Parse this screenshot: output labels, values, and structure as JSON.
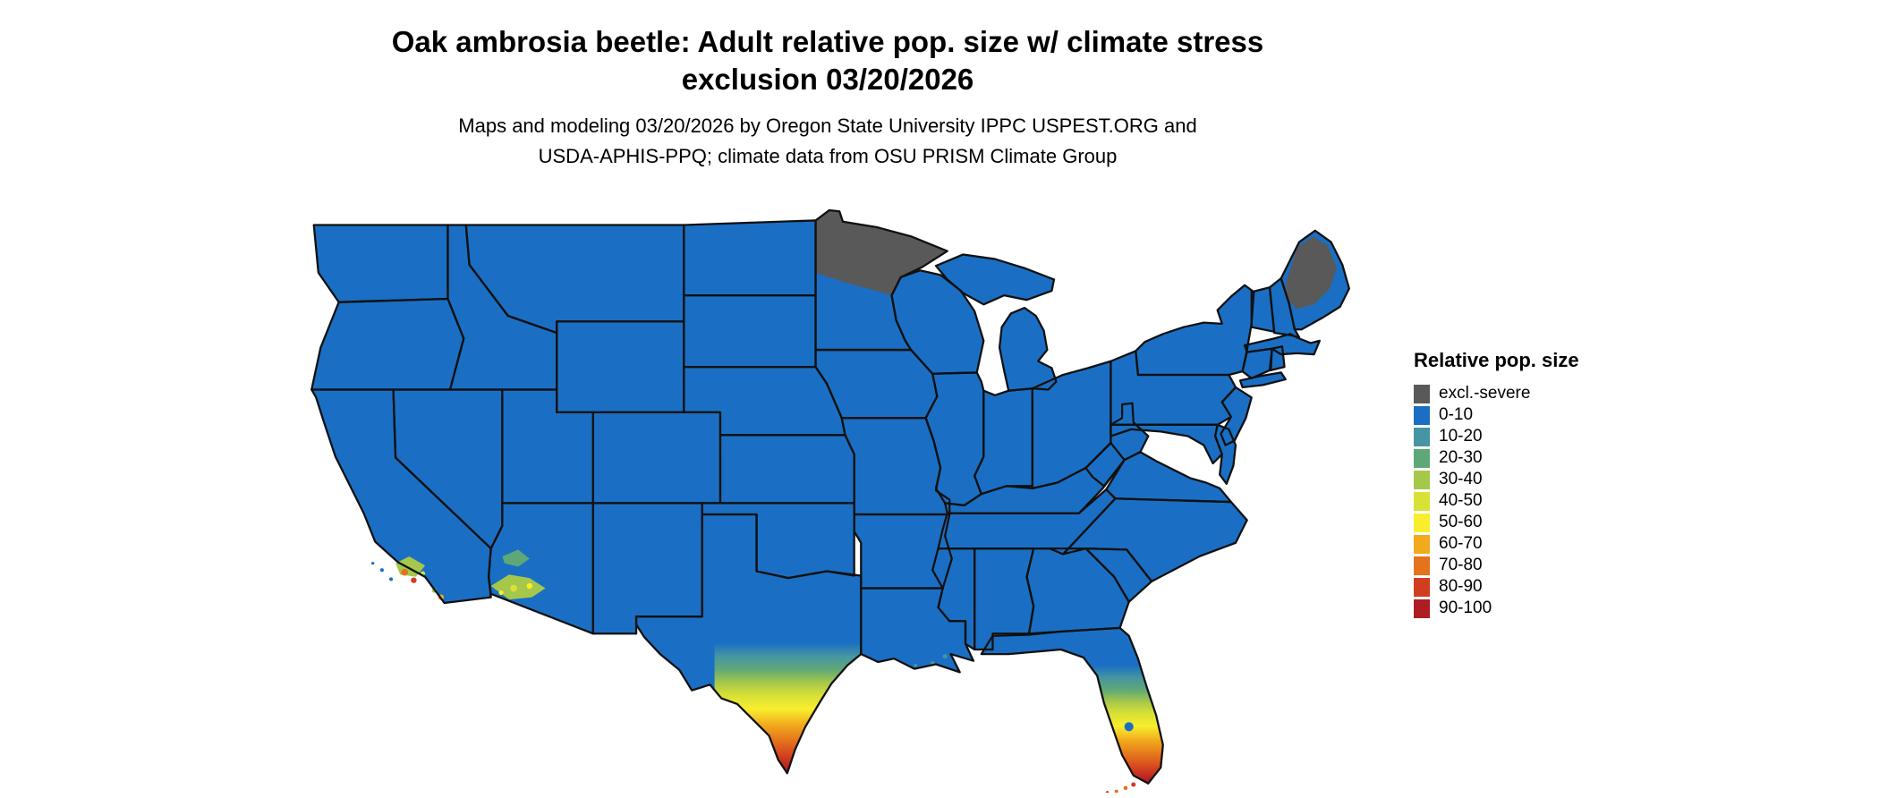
{
  "title": {
    "line1": "Oak ambrosia beetle: Adult relative pop. size w/ climate stress",
    "line2": "exclusion 03/20/2026"
  },
  "subtitle": {
    "line1": "Maps and modeling 03/20/2026 by Oregon State University IPPC USPEST.ORG and",
    "line2": "USDA-APHIS-PPQ; climate data from OSU PRISM Climate Group"
  },
  "legend": {
    "title": "Relative pop. size",
    "items": [
      {
        "label": "excl.-severe",
        "color": "#595959"
      },
      {
        "label": "0-10",
        "color": "#1a6fc4"
      },
      {
        "label": "10-20",
        "color": "#4695a2"
      },
      {
        "label": "20-30",
        "color": "#5ea878"
      },
      {
        "label": "30-40",
        "color": "#a6c84a"
      },
      {
        "label": "40-50",
        "color": "#d9e136"
      },
      {
        "label": "50-60",
        "color": "#f8ee2e"
      },
      {
        "label": "60-70",
        "color": "#f2a91c"
      },
      {
        "label": "70-80",
        "color": "#e4731c"
      },
      {
        "label": "80-90",
        "color": "#d13d20"
      },
      {
        "label": "90-100",
        "color": "#ad1d23"
      }
    ]
  },
  "map": {
    "excluded_regions_visible": [
      "northern Minnesota",
      "northern Maine"
    ],
    "warm_regions_visible": [
      "southern Texas",
      "southern Florida",
      "southern Arizona",
      "southern California coast"
    ],
    "border_color": "#111111",
    "background_color": "#ffffff"
  }
}
